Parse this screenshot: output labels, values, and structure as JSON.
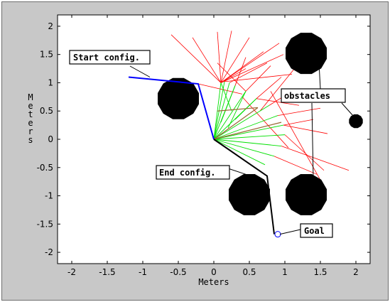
{
  "chart_data": {
    "type": "scatter",
    "title": "",
    "xlabel": "Meters",
    "ylabel": "Meters",
    "xlim": [
      -2.2,
      2.2
    ],
    "ylim": [
      -2.2,
      2.2
    ],
    "xticks": [
      "-2",
      "-1.5",
      "-1",
      "-0.5",
      "0",
      "0.5",
      "1",
      "1.5",
      "2"
    ],
    "yticks": [
      "2",
      "1.5",
      "1",
      "0.5",
      "0",
      "-0.5",
      "-1",
      "-1.5",
      "-2"
    ],
    "grid": false,
    "colors": {
      "start": "#0000ff",
      "end": "#000000",
      "red_tree": "#ff0000",
      "green_tree": "#00e000",
      "brown_branch": "#996633",
      "obstacle": "#000000",
      "background": "#c8c8c8",
      "axes": "#ffffff"
    },
    "start_config": [
      [
        -1.2,
        1.1
      ],
      [
        -0.22,
        0.98
      ],
      [
        0.0,
        0.0
      ]
    ],
    "end_config": [
      [
        0.0,
        0.0
      ],
      [
        0.75,
        -0.65
      ],
      [
        0.85,
        -1.68
      ]
    ],
    "goal": [
      0.9,
      -1.68
    ],
    "obstacles": [
      {
        "cx": -0.5,
        "cy": 0.72,
        "r": 0.3
      },
      {
        "cx": 1.3,
        "cy": 1.52,
        "r": 0.3
      },
      {
        "cx": 0.5,
        "cy": -0.98,
        "r": 0.3
      },
      {
        "cx": 1.3,
        "cy": -0.98,
        "r": 0.3
      },
      {
        "cx": 2.0,
        "cy": 0.32,
        "r": 0.1
      }
    ],
    "green_branches": [
      [
        [
          0,
          0
        ],
        [
          0.1,
          1.0
        ]
      ],
      [
        [
          0,
          0
        ],
        [
          0.15,
          1.02
        ]
      ],
      [
        [
          0,
          0
        ],
        [
          0.22,
          1.0
        ]
      ],
      [
        [
          0,
          0
        ],
        [
          0.3,
          0.95
        ]
      ],
      [
        [
          0,
          0
        ],
        [
          0.45,
          0.85
        ]
      ],
      [
        [
          0,
          0
        ],
        [
          0.6,
          0.72
        ]
      ],
      [
        [
          0,
          0
        ],
        [
          0.78,
          0.6
        ]
      ],
      [
        [
          0,
          0
        ],
        [
          0.9,
          0.42
        ]
      ],
      [
        [
          0,
          0
        ],
        [
          0.98,
          0.25
        ]
      ],
      [
        [
          0,
          0
        ],
        [
          1.0,
          0.08
        ]
      ],
      [
        [
          0,
          0
        ],
        [
          0.95,
          -0.12
        ]
      ],
      [
        [
          0,
          0
        ],
        [
          0.85,
          -0.3
        ]
      ],
      [
        [
          0,
          0
        ],
        [
          0.72,
          -0.45
        ]
      ],
      [
        [
          0.1,
          1.0
        ],
        [
          0.25,
          0.5
        ]
      ],
      [
        [
          0.3,
          0.95
        ],
        [
          0.1,
          0.3
        ]
      ],
      [
        [
          0.45,
          0.85
        ],
        [
          0.2,
          0.2
        ]
      ],
      [
        [
          0.6,
          0.72
        ],
        [
          0.3,
          0.35
        ]
      ]
    ],
    "brown_branches": [
      [
        [
          0,
          0
        ],
        [
          0.95,
          0.3
        ]
      ],
      [
        [
          0,
          0
        ],
        [
          0.62,
          0.56
        ]
      ],
      [
        [
          0.05,
          0.5
        ],
        [
          0.62,
          0.56
        ]
      ]
    ],
    "red_branches": [
      [
        [
          0.1,
          1.0
        ],
        [
          -0.6,
          1.85
        ]
      ],
      [
        [
          0.1,
          1.0
        ],
        [
          -0.3,
          1.8
        ]
      ],
      [
        [
          0.1,
          1.0
        ],
        [
          0.05,
          1.9
        ]
      ],
      [
        [
          0.1,
          1.0
        ],
        [
          0.25,
          1.92
        ]
      ],
      [
        [
          0.1,
          1.0
        ],
        [
          0.5,
          1.8
        ]
      ],
      [
        [
          0.1,
          1.0
        ],
        [
          0.7,
          1.55
        ]
      ],
      [
        [
          0.1,
          1.0
        ],
        [
          0.92,
          1.7
        ]
      ],
      [
        [
          0.1,
          1.0
        ],
        [
          0.98,
          1.5
        ]
      ],
      [
        [
          0.1,
          1.0
        ],
        [
          0.45,
          1.25
        ]
      ],
      [
        [
          0.15,
          1.02
        ],
        [
          1.1,
          1.15
        ]
      ],
      [
        [
          0.22,
          1.0
        ],
        [
          0.75,
          1.35
        ]
      ],
      [
        [
          0.3,
          0.95
        ],
        [
          0.45,
          1.45
        ]
      ],
      [
        [
          -0.22,
          0.98
        ],
        [
          0.4,
          0.8
        ]
      ],
      [
        [
          0.45,
          0.85
        ],
        [
          0.8,
          1.3
        ]
      ],
      [
        [
          0.6,
          0.72
        ],
        [
          1.2,
          0.6
        ]
      ],
      [
        [
          0.6,
          0.72
        ],
        [
          0.95,
          1.1
        ]
      ],
      [
        [
          0.78,
          0.6
        ],
        [
          1.1,
          0.85
        ]
      ],
      [
        [
          0.9,
          0.42
        ],
        [
          1.5,
          0.55
        ]
      ],
      [
        [
          0.98,
          0.25
        ],
        [
          1.6,
          0.1
        ]
      ],
      [
        [
          0.98,
          0.25
        ],
        [
          1.4,
          0.35
        ]
      ],
      [
        [
          1.0,
          0.08
        ],
        [
          1.55,
          -0.55
        ]
      ],
      [
        [
          0.95,
          -0.12
        ],
        [
          1.9,
          -0.55
        ]
      ],
      [
        [
          0.85,
          -0.3
        ],
        [
          1.45,
          -0.62
        ]
      ],
      [
        [
          0.8,
          0.85
        ],
        [
          1.5,
          -0.72
        ]
      ],
      [
        [
          0.4,
          0.75
        ],
        [
          1.05,
          -0.15
        ]
      ],
      [
        [
          0.65,
          0.5
        ],
        [
          1.2,
          1.35
        ]
      ],
      [
        [
          0.45,
          0.85
        ],
        [
          0.05,
          1.35
        ]
      ]
    ],
    "annotations": [
      {
        "text": "Start config.",
        "anchor": [
          -0.9,
          1.1
        ]
      },
      {
        "text": "obstacles",
        "anchor": [
          1.3,
          1.2
        ]
      },
      {
        "text": "End config.",
        "anchor": [
          0.4,
          -0.5
        ]
      },
      {
        "text": "Goal",
        "anchor": [
          0.9,
          -1.68
        ]
      }
    ]
  }
}
